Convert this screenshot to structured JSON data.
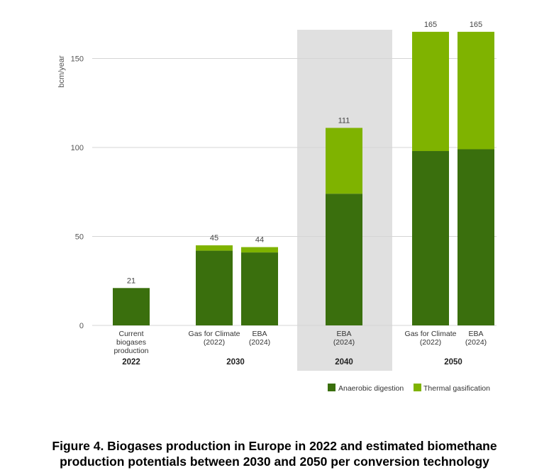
{
  "chart_data": {
    "type": "bar",
    "stacked": true,
    "ylabel": "bcm/year",
    "ylim": [
      0,
      165
    ],
    "yticks": [
      0,
      50,
      100,
      150
    ],
    "grid": true,
    "categories": [
      {
        "label_lines": [
          "Current",
          "biogases",
          "production"
        ],
        "group": "2022"
      },
      {
        "label_lines": [
          "Gas for Climate",
          "(2022)"
        ],
        "group": "2030"
      },
      {
        "label_lines": [
          "EBA",
          "(2024)"
        ],
        "group": "2030"
      },
      {
        "label_lines": [
          "EBA",
          "(2024)"
        ],
        "group": "2040"
      },
      {
        "label_lines": [
          "Gas for Climate",
          "(2022)"
        ],
        "group": "2050"
      },
      {
        "label_lines": [
          "EBA",
          "(2024)"
        ],
        "group": "2050"
      }
    ],
    "groups": [
      "2022",
      "2030",
      "2040",
      "2050"
    ],
    "highlighted_group": "2040",
    "series": [
      {
        "name": "Anaerobic digestion",
        "color": "#3a6f0d",
        "values": [
          21,
          42,
          41,
          74,
          98,
          99
        ]
      },
      {
        "name": "Thermal gasification",
        "color": "#7fb300",
        "values": [
          0,
          3,
          3,
          37,
          67,
          66
        ]
      }
    ],
    "totals": [
      "21",
      "45",
      "44",
      "111",
      "165",
      "165"
    ],
    "legend_placement": "bottom-right"
  },
  "caption": {
    "line1": "Figure 4. Biogases production in Europe in 2022 and estimated biomethane",
    "line2": "production potentials between 2030 and 2050 per conversion technology"
  }
}
